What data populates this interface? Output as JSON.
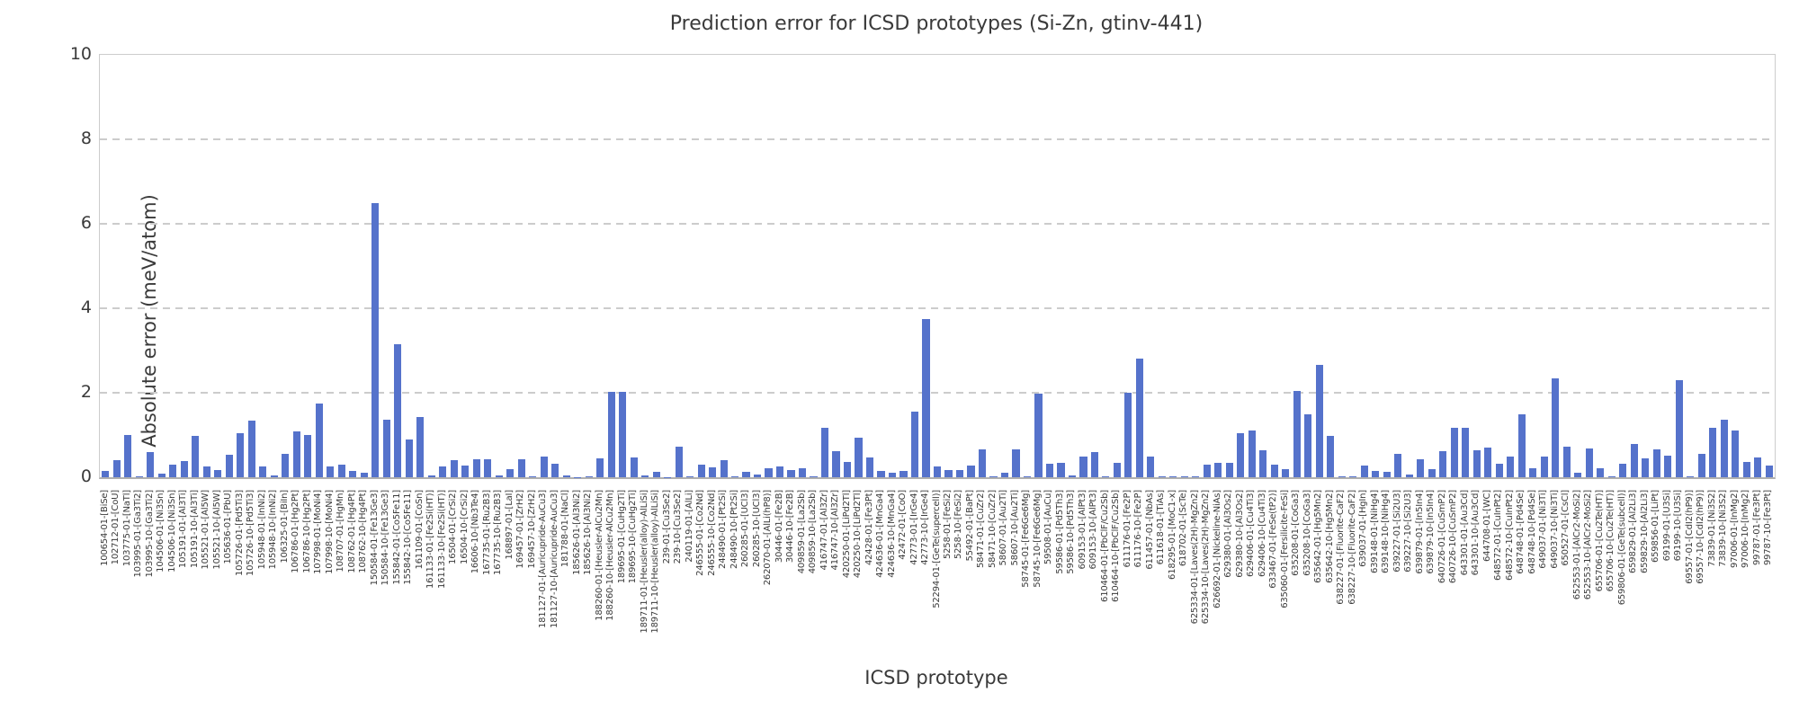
{
  "chart_data": {
    "type": "bar",
    "title": "Prediction error for ICSD prototypes (Si-Zn, gtinv-441)",
    "xlabel": "ICSD prototype",
    "ylabel": "Absolute error (meV/atom)",
    "ylim": [
      0,
      10
    ],
    "yticks": [
      0,
      2,
      4,
      6,
      8,
      10
    ],
    "grid": "horizontal dashed gridlines at 2, 4, 6, 8",
    "bar_color": "#5572cb",
    "grid_color": "#cccccc",
    "text_color": "#3a3a3a",
    "categories": [
      "100654-01-[BiSe]",
      "102712-01-[CoU]",
      "103775-01-[NaTl]",
      "103995-01-[Ga3Ti2]",
      "103995-10-[Ga3Ti2]",
      "104506-01-[Ni3Sn]",
      "104506-10-[Ni3Sn]",
      "105191-01-[Al3Ti]",
      "105191-10-[Al3Ti]",
      "105521-01-[Al5W]",
      "105521-10-[Al5W]",
      "105636-01-[PbU]",
      "105726-01-[Pd5Ti3]",
      "105726-10-[Pd5Ti3]",
      "105948-01-[InNi2]",
      "105948-10-[InNi2]",
      "106325-01-[BiIn]",
      "106786-01-[Hg2Pt]",
      "106786-10-[Hg2Pt]",
      "107998-01-[MoNi4]",
      "107998-10-[MoNi4]",
      "108707-01-[HgMn]",
      "108762-01-[Hg4Pt]",
      "108762-10-[Hg4Pt]",
      "150584-01-[Fe13Ge3]",
      "150584-10-[Fe13Ge3]",
      "155842-01-[Co5Fe11]",
      "155842-10-[Co5Fe11]",
      "161109-01-[CoSn]",
      "161133-01-[Fe2Si(HT)]",
      "161133-10-[Fe2Si(HT)]",
      "16504-01-[CrSi2]",
      "16504-10-[CrSi2]",
      "16606-10-[Nb3Te4]",
      "167735-01-[Ru2B3]",
      "167735-10-[Ru2B3]",
      "168897-01-[LaI]",
      "169457-01-[ZrH2]",
      "169457-10-[ZrH2]",
      "181127-01-[Auricupride-AuCu3]",
      "181127-10-[Auricupride-AuCu3]",
      "181788-01-[NaCl]",
      "185626-01-[Al3Ni2]",
      "185626-10-[Al3Ni2]",
      "188260-01-[Heusler-AlCu2Mn]",
      "188260-10-[Heusler-AlCu2Mn]",
      "189695-01-[CuHg2Ti]",
      "189695-10-[CuHg2Ti]",
      "189711-01-[Heusler(alloy)-AlLiSi]",
      "189711-10-[Heusler(alloy)-AlLiSi]",
      "239-01-[Cu3Se2]",
      "239-10-[Cu3Se2]",
      "240119-01-[AlLi]",
      "246555-01-[Co2Nd]",
      "246555-10-[Co2Nd]",
      "248490-01-[Pt2Si]",
      "248490-10-[Pt2Si]",
      "260285-01-[UCl3]",
      "260285-10-[UCl3]",
      "262070-01-[AlLi(hP8)]",
      "30446-01-[Fe2B]",
      "30446-10-[Fe2B]",
      "409859-01-[La2Sb]",
      "409859-10-[La2Sb]",
      "416747-01-[Al3Zr]",
      "416747-10-[Al3Zr]",
      "420250-01-[LiPd2Tl]",
      "420250-10-[LiPd2Tl]",
      "42428-01-[Fe3Pt]",
      "424636-01-[MnGa4]",
      "424636-10-[MnGa4]",
      "42472-01-[CoO]",
      "42773-01-[IrGe4]",
      "42773-10-[IrGe4]",
      "52294-01-[GeTe(supercell)]",
      "5258-01-[FeSi2]",
      "5258-10-[FeSi2]",
      "55492-01-[BaPt]",
      "58471-01-[CuZr2]",
      "58471-10-[CuZr2]",
      "58607-01-[Au2Ti]",
      "58607-10-[Au2Ti]",
      "58745-01-[Fe6Ge6Mg]",
      "58745-10-[Fe6Ge6Mg]",
      "59508-01-[AuCu]",
      "59586-01-[Pd5Th3]",
      "59586-10-[Pd5Th3]",
      "609153-01-[AlPt3]",
      "609153-10-[AlPt3]",
      "610464-01-[PbClF/Cu2Sb]",
      "610464-10-[PbClF/Cu2Sb]",
      "611176-01-[Fe2P]",
      "611176-10-[Fe2P]",
      "611457-01-[NbAs]",
      "611618-01-[TiAs]",
      "618295-01-[MoC1-x]",
      "618702-01-[ScTe]",
      "625334-01-[Laves(2H)-MgZn2]",
      "625334-10-[Laves(2H)-MgZn2]",
      "626692-01-[Nickeline-NiAs]",
      "629380-01-[Al3Os2]",
      "629380-10-[Al3Os2]",
      "629406-01-[Cu4Ti3]",
      "629406-10-[Cu4Ti3]",
      "633467-01-[FeSe(tP2)]",
      "635060-01-[Fersilicite-FeSi]",
      "635208-01-[CoGa3]",
      "635208-10-[CoGa3]",
      "635642-01-[Hg5Mn2]",
      "635642-10-[Hg5Mn2]",
      "638227-01-[Fluorite-CaF2]",
      "638227-10-[Fluorite-CaF2]",
      "639037-01-[HgIn]",
      "639148-01-[NiHg4]",
      "639148-10-[NiHg4]",
      "639227-01-[Si2U3]",
      "639227-10-[Si2U3]",
      "639879-01-[In5In4]",
      "639879-10-[In5In4]",
      "640726-01-[CuSmP2]",
      "640726-10-[CuSmP2]",
      "643301-01-[Au3Cd]",
      "643301-10-[Au3Cd]",
      "644708-01-[WC]",
      "648572-01-[CuInPt2]",
      "648572-10-[CuInPt2]",
      "648748-01-[Pd4Se]",
      "648748-10-[Pd4Se]",
      "649037-01-[Ni3Ti]",
      "649037-10-[Ni3Ti]",
      "650527-01-[CsCl]",
      "652553-01-[AlCr2-MoSi2]",
      "652553-10-[AlCr2-MoSi2]",
      "655706-01-[Cu2Te(HT)]",
      "655706-10-[Cu2Te(HT)]",
      "659806-01-[GeTe(subcell)]",
      "659829-01-[Al2Li3]",
      "659829-10-[Al2Li3]",
      "659856-01-[LiPt]",
      "69199-01-[U3Si]",
      "69199-10-[U3Si]",
      "69557-01-[CdI2(hP9)]",
      "69557-10-[CdI2(hP9)]",
      "73839-01-[Ni3S2]",
      "73839-10-[Ni3S2]",
      "97006-01-[InMg2]",
      "97006-10-[InMg2]",
      "99787-01-[Fe3Pt]",
      "99787-10-[Fe3Pt]"
    ],
    "values": [
      0.15,
      0.4,
      1.0,
      0.02,
      0.6,
      0.08,
      0.3,
      0.38,
      0.97,
      0.25,
      0.18,
      0.54,
      1.05,
      1.33,
      0.25,
      0.05,
      0.55,
      1.08,
      1.0,
      1.75,
      0.25,
      0.3,
      0.15,
      0.1,
      6.5,
      1.37,
      3.15,
      0.9,
      1.43,
      0.05,
      0.25,
      0.4,
      0.28,
      0.43,
      0.43,
      0.05,
      0.2,
      0.43,
      0.02,
      0.48,
      0.31,
      0.05,
      0.01,
      0.03,
      0.45,
      2.02,
      2.02,
      0.47,
      0.05,
      0.13,
      0.01,
      0.72,
      0.02,
      0.29,
      0.23,
      0.41,
      0.02,
      0.12,
      0.06,
      0.21,
      0.26,
      0.17,
      0.21,
      0.02,
      1.17,
      0.62,
      0.36,
      0.93,
      0.47,
      0.15,
      0.1,
      0.15,
      1.55,
      3.75,
      0.26,
      0.18,
      0.18,
      0.27,
      0.65,
      0.02,
      0.1,
      0.65,
      0.03,
      1.97,
      0.32,
      0.33,
      0.04,
      0.48,
      0.6,
      0.02,
      0.33,
      2.0,
      2.8,
      0.5,
      0.03,
      0.03,
      0.03,
      0.02,
      0.3,
      0.35,
      0.35,
      1.05,
      1.1,
      0.63,
      0.3,
      0.2,
      2.05,
      1.48,
      2.65,
      0.97,
      0.02,
      0.02,
      0.28,
      0.14,
      0.12,
      0.55,
      0.07,
      0.43,
      0.2,
      0.62,
      1.18,
      1.18,
      0.64,
      0.71,
      0.31,
      0.48,
      1.48,
      0.21,
      0.5,
      2.35,
      0.73,
      0.1,
      0.69,
      0.22,
      0.02,
      0.31,
      0.79,
      0.45,
      0.66,
      0.52,
      2.3,
      0.03,
      0.55,
      1.16,
      1.37,
      1.11,
      0.36,
      0.47,
      0.27
    ]
  }
}
